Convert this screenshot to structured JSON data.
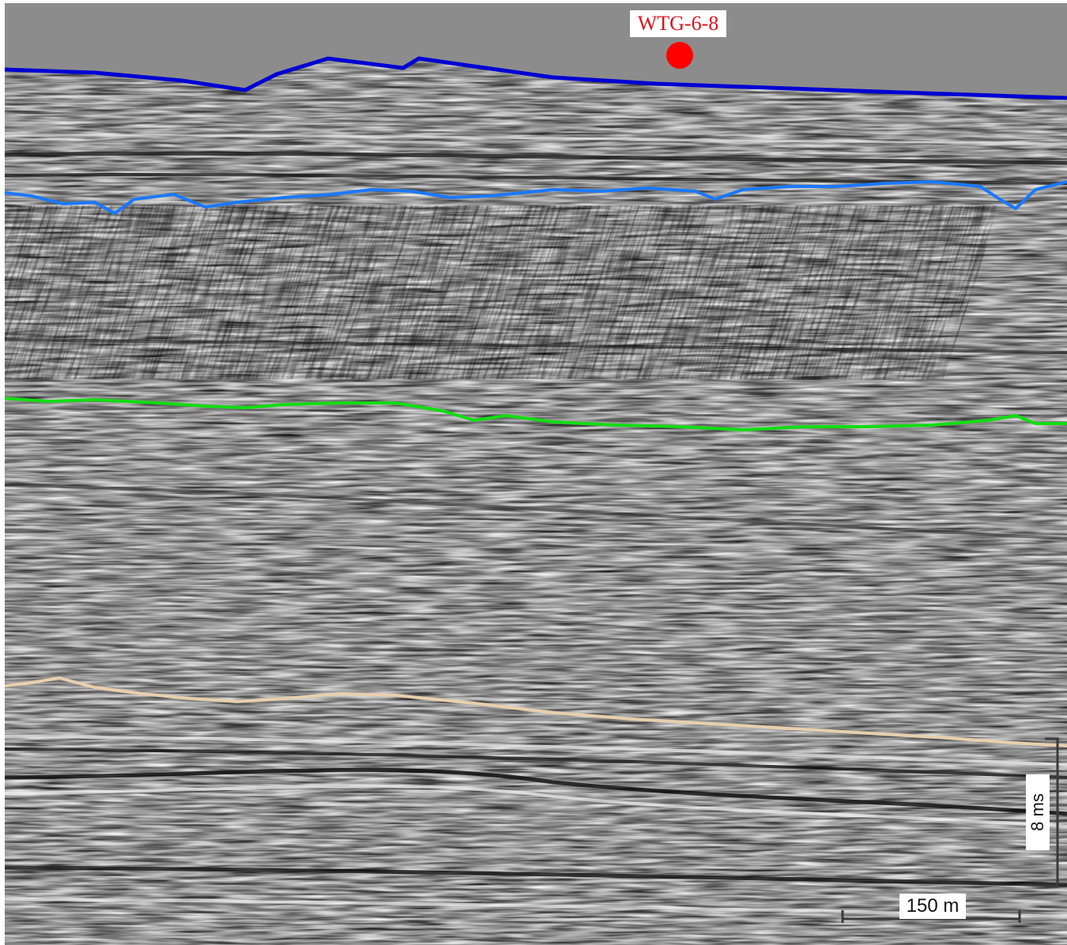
{
  "well": {
    "label": "WTG-6-8",
    "marker_color": "#ff0000"
  },
  "horizons": [
    {
      "name": "seafloor-horizon",
      "color": "#0000d2"
    },
    {
      "name": "horizon-2",
      "color": "#1a78ff"
    },
    {
      "name": "horizon-3",
      "color": "#12dd12"
    },
    {
      "name": "horizon-4",
      "color": "#e9cfae"
    }
  ],
  "scale_bars": {
    "horizontal_label": "150 m",
    "vertical_label": "8 ms"
  },
  "colors": {
    "water": "#8c8c8c",
    "seismic_base": "#8f8f8f"
  }
}
